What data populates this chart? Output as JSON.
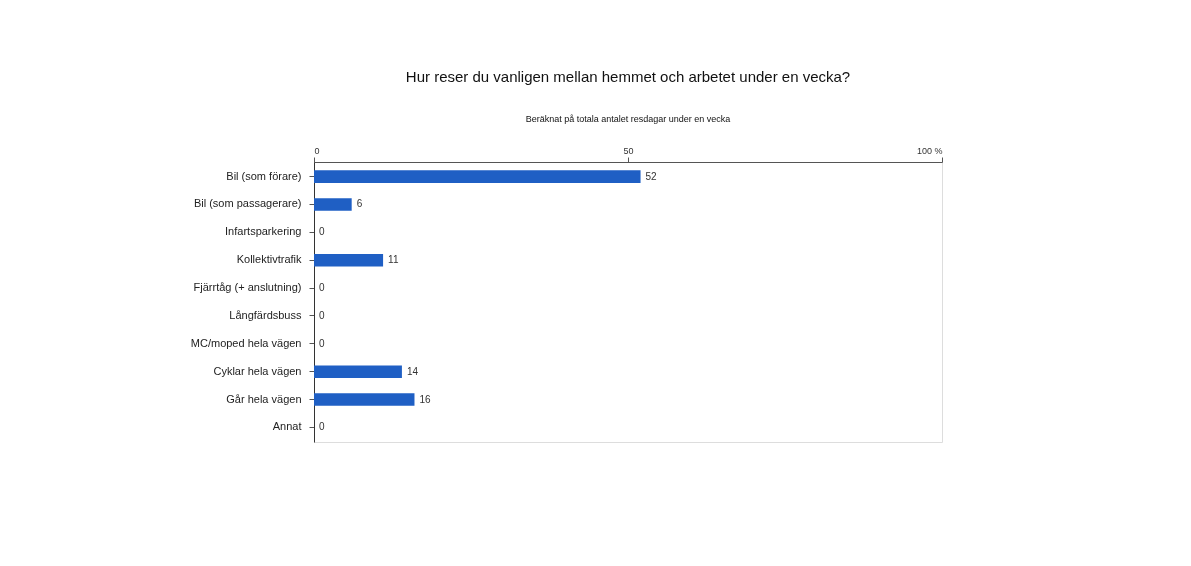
{
  "chart_data": {
    "type": "bar",
    "orientation": "horizontal",
    "title": "Hur reser du vanligen mellan hemmet och arbetet under en vecka?",
    "subtitle": "Beräknat på totala antalet resdagar under en vecka",
    "categories": [
      "Bil (som förare)",
      "Bil (som passagerare)",
      "Infartsparkering",
      "Kollektivtrafik",
      "Fjärrtåg (+ anslutning)",
      "Långfärdsbuss",
      "MC/moped hela vägen",
      "Cyklar hela vägen",
      "Går hela vägen",
      "Annat"
    ],
    "values": [
      52,
      6,
      0,
      11,
      0,
      0,
      0,
      14,
      16,
      0
    ],
    "color": "#1f5fc4",
    "xlim": [
      0,
      100
    ],
    "xticks": [
      0,
      50,
      {
        "value": 100,
        "label": "100 %"
      }
    ],
    "data_labels": true,
    "grid": false
  }
}
